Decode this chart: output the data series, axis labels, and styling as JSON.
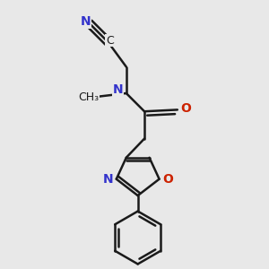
{
  "bg_color": "#e8e8e8",
  "bond_color": "#1a1a1a",
  "N_color": "#3333cc",
  "O_color": "#cc2200",
  "line_width": 1.8,
  "fig_size": [
    3.0,
    3.0
  ],
  "dpi": 100,
  "xlim": [
    0.6,
    2.8
  ],
  "ylim": [
    0.0,
    3.2
  ]
}
